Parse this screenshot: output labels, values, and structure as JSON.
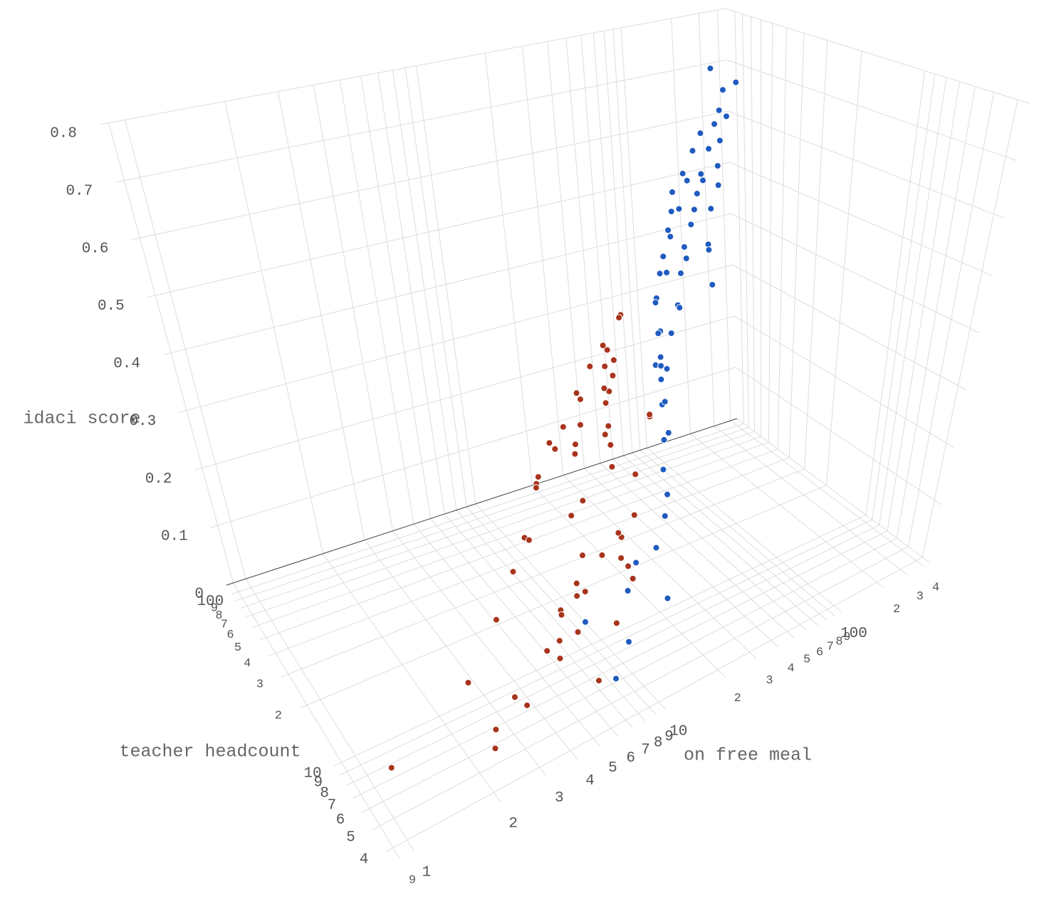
{
  "chart_data": {
    "type": "scatter3d",
    "xlabel": "on free meal",
    "ylabel": "teacher headcount",
    "zlabel": "idaci score",
    "xscale": "log",
    "yscale": "log",
    "xlim": [
      0.85,
      450
    ],
    "ylim": [
      3.6,
      115
    ],
    "zlim": [
      0,
      0.8
    ],
    "xticks": [
      {
        "value": 0.9,
        "label": "9"
      },
      1,
      2,
      3,
      4,
      5,
      6,
      7,
      8,
      9,
      10,
      {
        "value": 20,
        "label": "2"
      },
      {
        "value": 30,
        "label": "3"
      },
      {
        "value": 40,
        "label": "4"
      },
      {
        "value": 50,
        "label": "5"
      },
      {
        "value": 60,
        "label": "6"
      },
      {
        "value": 70,
        "label": "7"
      },
      {
        "value": 80,
        "label": "8"
      },
      {
        "value": 90,
        "label": "9"
      },
      100,
      {
        "value": 200,
        "label": "2"
      },
      {
        "value": 300,
        "label": "3"
      },
      {
        "value": 400,
        "label": "4"
      }
    ],
    "yticks": [
      4,
      5,
      6,
      7,
      8,
      9,
      10,
      {
        "value": 20,
        "label": "2"
      },
      {
        "value": 30,
        "label": "3"
      },
      {
        "value": 40,
        "label": "4"
      },
      {
        "value": 50,
        "label": "5"
      },
      {
        "value": 60,
        "label": "6"
      },
      {
        "value": 70,
        "label": "7"
      },
      {
        "value": 80,
        "label": "8"
      },
      {
        "value": 90,
        "label": "9"
      },
      100
    ],
    "zticks": [
      0,
      0.1,
      0.2,
      0.3,
      0.4,
      0.5,
      0.6,
      0.7,
      0.8
    ],
    "grid": true,
    "series": [
      {
        "color": "#a8341c",
        "x": [
          1,
          2,
          2,
          3,
          3,
          4,
          4,
          5,
          5,
          6,
          6,
          7,
          8,
          8,
          9,
          10,
          10,
          11,
          12,
          13,
          14,
          15,
          16,
          18,
          20,
          22,
          24,
          26,
          28,
          30,
          32,
          35,
          38,
          40,
          45,
          50,
          55,
          3,
          5,
          7,
          9,
          12,
          15,
          18,
          21,
          25,
          30,
          6,
          8,
          11,
          14,
          17,
          2,
          4,
          6,
          9,
          13,
          19,
          27,
          36
        ],
        "y": [
          5,
          6,
          4,
          8,
          5,
          10,
          6,
          7,
          12,
          9,
          15,
          8,
          20,
          11,
          25,
          14,
          30,
          18,
          22,
          35,
          16,
          40,
          28,
          45,
          24,
          50,
          33,
          60,
          38,
          70,
          42,
          55,
          80,
          48,
          65,
          90,
          75,
          6,
          7,
          9,
          12,
          10,
          14,
          20,
          26,
          32,
          44,
          5,
          6,
          8,
          10,
          13,
          4,
          5,
          7,
          9,
          11,
          15,
          19,
          27
        ],
        "z": [
          0.08,
          0.12,
          0.1,
          0.15,
          0.07,
          0.18,
          0.11,
          0.14,
          0.2,
          0.09,
          0.16,
          0.13,
          0.22,
          0.1,
          0.18,
          0.2,
          0.15,
          0.25,
          0.12,
          0.2,
          0.28,
          0.17,
          0.24,
          0.19,
          0.3,
          0.14,
          0.27,
          0.21,
          0.32,
          0.18,
          0.26,
          0.29,
          0.22,
          0.35,
          0.24,
          0.2,
          0.3,
          0.06,
          0.09,
          0.11,
          0.13,
          0.16,
          0.12,
          0.19,
          0.23,
          0.17,
          0.21,
          0.05,
          0.1,
          0.14,
          0.08,
          0.15,
          0.07,
          0.12,
          0.09,
          0.16,
          0.11,
          0.2,
          0.26,
          0.22
        ]
      },
      {
        "color": "#1f5bbf",
        "x": [
          20,
          25,
          30,
          35,
          40,
          45,
          50,
          55,
          60,
          70,
          80,
          90,
          100,
          110,
          120,
          130,
          150,
          170,
          190,
          220,
          250,
          280,
          320,
          380,
          15,
          18,
          22,
          28,
          34,
          42,
          52,
          65,
          75,
          85,
          95,
          105,
          125,
          140,
          160,
          180,
          200,
          240,
          300,
          10,
          12,
          14,
          8,
          6,
          5,
          60,
          70,
          85,
          110,
          135,
          160,
          200,
          260,
          350,
          40,
          48
        ],
        "y": [
          10,
          14,
          18,
          22,
          26,
          30,
          35,
          40,
          45,
          50,
          55,
          60,
          65,
          70,
          75,
          80,
          85,
          90,
          95,
          100,
          100,
          90,
          95,
          105,
          8,
          9,
          12,
          15,
          20,
          25,
          30,
          35,
          40,
          45,
          48,
          52,
          58,
          62,
          68,
          72,
          78,
          85,
          100,
          7,
          8,
          6,
          5,
          4,
          5,
          20,
          25,
          30,
          38,
          42,
          50,
          60,
          70,
          80,
          28,
          32
        ],
        "z": [
          0.2,
          0.25,
          0.28,
          0.3,
          0.32,
          0.35,
          0.33,
          0.38,
          0.36,
          0.4,
          0.42,
          0.38,
          0.45,
          0.43,
          0.47,
          0.5,
          0.46,
          0.52,
          0.5,
          0.55,
          0.58,
          0.6,
          0.62,
          0.65,
          0.15,
          0.18,
          0.22,
          0.25,
          0.27,
          0.3,
          0.34,
          0.37,
          0.35,
          0.4,
          0.44,
          0.41,
          0.46,
          0.48,
          0.5,
          0.53,
          0.51,
          0.56,
          0.7,
          0.12,
          0.14,
          0.1,
          0.09,
          0.08,
          0.16,
          0.45,
          0.5,
          0.47,
          0.52,
          0.55,
          0.57,
          0.6,
          0.63,
          0.68,
          0.3,
          0.28
        ]
      }
    ]
  }
}
